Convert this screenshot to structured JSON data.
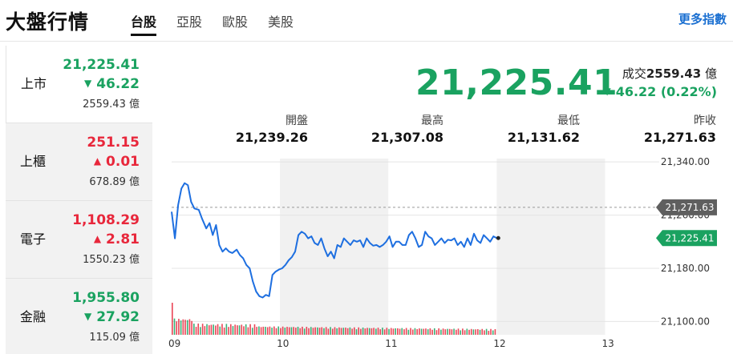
{
  "header": {
    "title": "大盤行情",
    "tabs": [
      "台股",
      "亞股",
      "歐股",
      "美股"
    ],
    "active_tab": 0,
    "more_link": "更多指數"
  },
  "sidebar": {
    "items": [
      {
        "name": "上市",
        "value": "21,225.41",
        "change": "46.22",
        "direction": "down",
        "volume": "2559.43 億"
      },
      {
        "name": "上櫃",
        "value": "251.15",
        "change": "0.01",
        "direction": "up",
        "volume": "678.89 億"
      },
      {
        "name": "電子",
        "value": "1,108.29",
        "change": "2.81",
        "direction": "up",
        "volume": "1550.23 億"
      },
      {
        "name": "金融",
        "value": "1,955.80",
        "change": "27.92",
        "direction": "down",
        "volume": "115.09 億"
      }
    ]
  },
  "quote": {
    "price": "21,225.41",
    "volume_label": "成交",
    "volume_value": "2559.43",
    "volume_unit": "億",
    "change": "46.22 (0.22%)",
    "direction": "down",
    "stats": [
      {
        "label": "開盤",
        "value": "21,239.26"
      },
      {
        "label": "最高",
        "value": "21,307.08"
      },
      {
        "label": "最低",
        "value": "21,131.62"
      },
      {
        "label": "昨收",
        "value": "21,271.63"
      }
    ]
  },
  "colors": {
    "up": "#e8273b",
    "down": "#1aa260",
    "line": "#1e6fe0",
    "prev_close_tag": "#5f5f5f"
  },
  "chart_data": {
    "type": "line",
    "x_unit": "hour",
    "x_ticks": [
      "09",
      "10",
      "11",
      "12",
      "13"
    ],
    "x_range": [
      9,
      13.5
    ],
    "y_range": [
      21080,
      21345
    ],
    "y_ticks": [
      "21,340.00",
      "21,260.00",
      "21,180.00",
      "21,100.00"
    ],
    "y_tick_values": [
      21340,
      21260,
      21180,
      21100
    ],
    "prev_close": {
      "value": 21271.63,
      "label": "21,271.63"
    },
    "last": {
      "value": 21225.41,
      "label": "21,225.41"
    },
    "series": [
      {
        "x": [
          9.0,
          9.03,
          9.06,
          9.09,
          9.12,
          9.15,
          9.18,
          9.21,
          9.25,
          9.28,
          9.32,
          9.35,
          9.38,
          9.41,
          9.44,
          9.47,
          9.5,
          9.53,
          9.56,
          9.6,
          9.63,
          9.66,
          9.69,
          9.72,
          9.75,
          9.78,
          9.81,
          9.84,
          9.87,
          9.9,
          9.93,
          9.96,
          9.99,
          10.02,
          10.05,
          10.08,
          10.11,
          10.14,
          10.17,
          10.2,
          10.23,
          10.26,
          10.29,
          10.32,
          10.35,
          10.38,
          10.41,
          10.44,
          10.47,
          10.5,
          10.53,
          10.56,
          10.59,
          10.62,
          10.65,
          10.68,
          10.71,
          10.74,
          10.77,
          10.8,
          10.83,
          10.86,
          10.89,
          10.92,
          10.95,
          10.98,
          11.01,
          11.04,
          11.07,
          11.1,
          11.13,
          11.16,
          11.19,
          11.22,
          11.25,
          11.28,
          11.31,
          11.34,
          11.37,
          11.4,
          11.43,
          11.46,
          11.49,
          11.52,
          11.55,
          11.58,
          11.61,
          11.64,
          11.67,
          11.7,
          11.73,
          11.76,
          11.79,
          11.82,
          11.85,
          11.88,
          11.91,
          11.94,
          11.97,
          12.0
        ],
        "y": [
          21265,
          21225,
          21275,
          21300,
          21308,
          21305,
          21280,
          21270,
          21268,
          21255,
          21240,
          21248,
          21230,
          21245,
          21215,
          21205,
          21210,
          21205,
          21203,
          21208,
          21200,
          21195,
          21185,
          21180,
          21160,
          21145,
          21138,
          21136,
          21140,
          21138,
          21170,
          21175,
          21178,
          21180,
          21185,
          21192,
          21197,
          21205,
          21230,
          21235,
          21232,
          21225,
          21228,
          21218,
          21215,
          21225,
          21210,
          21198,
          21205,
          21195,
          21215,
          21212,
          21225,
          21220,
          21215,
          21222,
          21220,
          21222,
          21212,
          21225,
          21218,
          21214,
          21215,
          21212,
          21215,
          21220,
          21228,
          21212,
          21220,
          21220,
          21215,
          21215,
          21230,
          21235,
          21225,
          21212,
          21215,
          21235,
          21228,
          21225,
          21215,
          21220,
          21225,
          21218,
          21223,
          21222,
          21225,
          21215,
          21220,
          21212,
          21225,
          21215,
          21232,
          21222,
          21218,
          21230,
          21225,
          21220,
          21228,
          21225.41
        ]
      }
    ],
    "volume_bars": [
      {
        "from": 9.0,
        "to": 12.0,
        "count": 150,
        "first": 1.0,
        "settle": 0.24
      }
    ]
  }
}
